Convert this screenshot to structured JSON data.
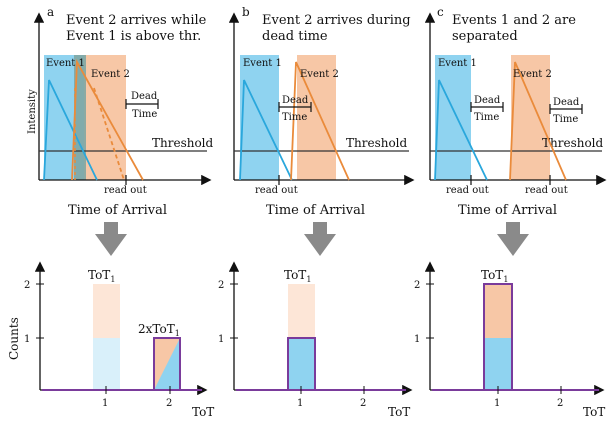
{
  "colors": {
    "event1_fill": "#8fd3f0",
    "event2_fill": "#f7c7a6",
    "event1_line": "#2aa7dc",
    "event2_line": "#ea8b3b",
    "hist_line": "#7a3b9b",
    "arrow_gray": "#8a8a8a",
    "axis": "#111111"
  },
  "common": {
    "x_label_top": "Time of Arrival",
    "y_label_top": "Intensity",
    "y_label_bottom": "Counts",
    "x_label_bottom": "ToT",
    "threshold": "Threshold",
    "read_out": "read out",
    "dead": "Dead",
    "time": "Time",
    "event1": "Event 1",
    "event2": "Event 2",
    "tot1": "ToT",
    "tot1_sub": "1",
    "two_x": "2xToT",
    "tick_1": "1",
    "tick_2": "2"
  },
  "panels": [
    {
      "letter": "a",
      "title_line1": "Event 2 arrives while",
      "title_line2": "Event 1 is above thr."
    },
    {
      "letter": "b",
      "title_line1": "Event 2 arrives during",
      "title_line2": "dead time"
    },
    {
      "letter": "c",
      "title_line1": "Events 1 and 2 are",
      "title_line2": "separated"
    }
  ]
}
